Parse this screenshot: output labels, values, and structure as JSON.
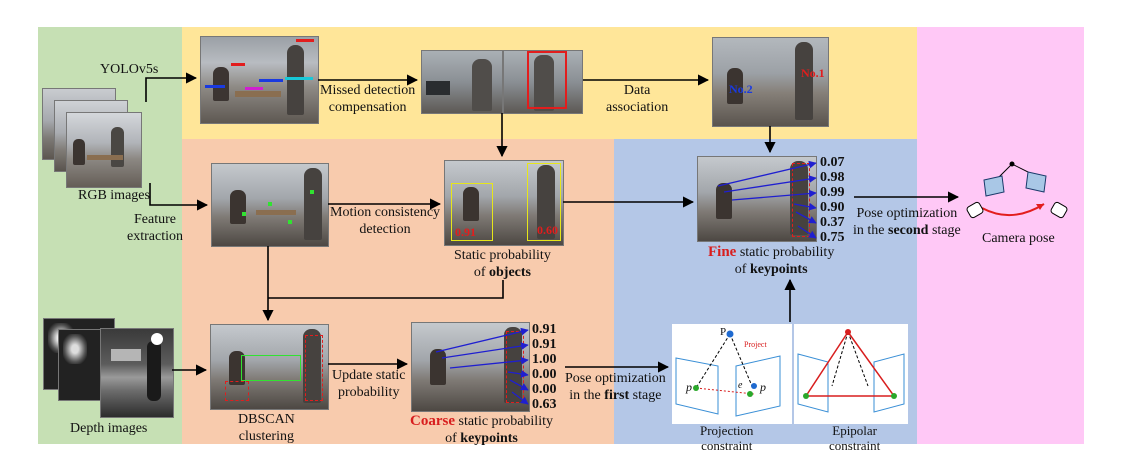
{
  "input": {
    "rgb_label": "RGB images",
    "depth_label": "Depth images"
  },
  "detection": {
    "yolo_label": "YOLOv5s",
    "missed_line1": "Missed detection",
    "missed_line2": "compensation",
    "data_line1": "Data",
    "data_line2": "association",
    "tag_no1": "No.1",
    "tag_no2": "No.2"
  },
  "coarse": {
    "feature_line1": "Feature",
    "feature_line2": "extraction",
    "motion_line1": "Motion consistency",
    "motion_line2": "detection",
    "obj_score_left": "0.91",
    "obj_score_right": "0.60",
    "static_obj_line1": "Static probability",
    "static_obj_pre": "of ",
    "static_obj_bold": "objects",
    "dbscan_line1": "DBSCAN",
    "dbscan_line2": "clustering",
    "update_line1": "Update static",
    "update_line2": "probability",
    "coarse_word": "Coarse",
    "coarse_rest": " static probability",
    "coarse_pre": "of ",
    "coarse_bold": "keypoints",
    "coarse_values": [
      "0.91",
      "0.91",
      "1.00",
      "0.00",
      "0.00",
      "0.63"
    ]
  },
  "fine": {
    "pose1_line1": "Pose optimization",
    "pose1_pre": "in the ",
    "pose1_bold": "first",
    "pose1_post": " stage",
    "proj_line1": "Projection",
    "proj_line2": "constraint",
    "epi_line1": "Epipolar",
    "epi_line2": "constraint",
    "proj_P": "P",
    "proj_p1": "p",
    "proj_p2": "p",
    "proj_project": "Project",
    "proj_e": "e",
    "fine_word": "Fine",
    "fine_rest": " static probability",
    "fine_pre": "of ",
    "fine_bold": "keypoints",
    "fine_values": [
      "0.07",
      "0.98",
      "0.99",
      "0.90",
      "0.37",
      "0.75"
    ]
  },
  "output": {
    "pose2_line1": "Pose optimization",
    "pose2_pre": "in the ",
    "pose2_bold": "second",
    "pose2_post": " stage",
    "camera_label": "Camera pose"
  },
  "colors": {
    "green_panel": "#c6e0b4",
    "yellow_panel": "#ffe699",
    "orange_panel": "#f8cbad",
    "blue_panel": "#b4c7e7",
    "pink_panel": "#ffc8f6",
    "highlight_red": "#d81e1e",
    "arrow_blue": "#1f1fd0"
  }
}
